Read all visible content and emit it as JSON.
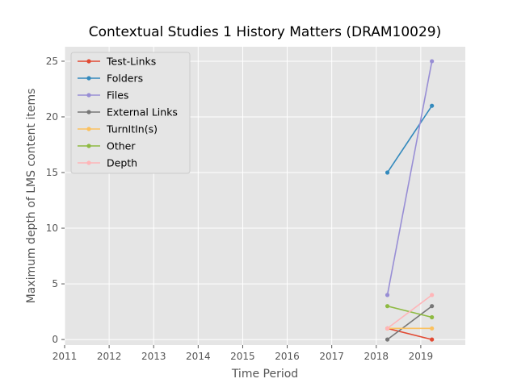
{
  "chart_data": {
    "type": "line",
    "title": "Contextual Studies 1 History Matters (DRAM10029)",
    "xlabel": "Time Period",
    "ylabel": "Maximum depth of LMS content items",
    "xlim": [
      2011,
      2020
    ],
    "ylim": [
      -0.5,
      26.3
    ],
    "x_ticks": [
      "2011",
      "2012",
      "2013",
      "2014",
      "2015",
      "2016",
      "2017",
      "2018",
      "2019"
    ],
    "y_ticks": [
      "0",
      "5",
      "10",
      "15",
      "20",
      "25"
    ],
    "grid": true,
    "legend_position": "top-left",
    "x": [
      2018.25,
      2019.25
    ],
    "series": [
      {
        "name": "Test-Links",
        "color": "#E24A33",
        "values": [
          1,
          0
        ]
      },
      {
        "name": "Folders",
        "color": "#348ABD",
        "values": [
          15,
          21
        ]
      },
      {
        "name": "Files",
        "color": "#988ED5",
        "values": [
          4,
          25
        ]
      },
      {
        "name": "External Links",
        "color": "#777777",
        "values": [
          0,
          3
        ]
      },
      {
        "name": "TurnItIn(s)",
        "color": "#FBC15E",
        "values": [
          1,
          1
        ]
      },
      {
        "name": "Other",
        "color": "#8EBA42",
        "values": [
          3,
          2
        ]
      },
      {
        "name": "Depth",
        "color": "#FFB5B8",
        "values": [
          1,
          4
        ]
      }
    ]
  }
}
